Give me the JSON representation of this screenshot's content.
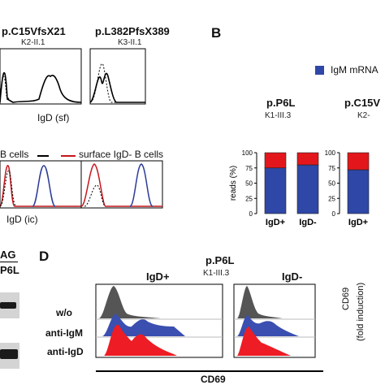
{
  "panel_a": {
    "mutations": [
      {
        "name": "p.C15VfsX21",
        "patient": "K2-II.1"
      },
      {
        "name": "p.L382PfsX389",
        "patient": "K3-II.1"
      }
    ],
    "xlabel_sf": "IgD (sf)",
    "xlabel_ic": "IgD (ic)",
    "legend_igd_pos": "B cells",
    "legend_igd_neg": "surface IgD- B cells",
    "colors": {
      "igd_pos": "#2b3a97",
      "igd_neg": "#c4161c",
      "control": "#000000"
    }
  },
  "panel_b": {
    "letter": "B",
    "legend_label": "IgM mRNA",
    "colors": {
      "igm": "#2f47a6",
      "other": "#e3171b"
    },
    "chart_data": [
      {
        "type": "bar",
        "title": "p.P6L",
        "subtitle": "K1-III.3",
        "ylabel": "reads (%)",
        "categories": [
          "IgD+",
          "IgD-"
        ],
        "series": [
          {
            "name": "IgM mRNA",
            "values": [
              75,
              80
            ]
          },
          {
            "name": "",
            "values": [
              25,
              20
            ]
          }
        ],
        "yticks": [
          0,
          25,
          50,
          75,
          100
        ],
        "ylim": [
          0,
          100
        ]
      },
      {
        "type": "bar",
        "title": "p.C15V",
        "subtitle": "K2-",
        "categories": [
          "IgD+"
        ],
        "series": [
          {
            "name": "IgM mRNA",
            "values": [
              72
            ]
          },
          {
            "name": "",
            "values": [
              28
            ]
          }
        ],
        "yticks": [
          0,
          25,
          50,
          75,
          100
        ],
        "ylim": [
          0,
          100
        ]
      }
    ]
  },
  "panel_c": {
    "header_partial": "AG",
    "lane_label": "P6L"
  },
  "panel_d": {
    "letter": "D",
    "mutation": "p.P6L",
    "patient": "K1-III.3",
    "col_pos": "IgD+",
    "col_neg": "IgD-",
    "rows": [
      "w/o",
      "anti-IgM",
      "anti-IgD"
    ],
    "xlabel": "CD69",
    "side_label_1": "CD69",
    "side_label_2": "(fold induction)",
    "colors": {
      "wo": "#555555",
      "anti_igm": "#3a4fb0",
      "anti_igd": "#ee1c24"
    }
  }
}
